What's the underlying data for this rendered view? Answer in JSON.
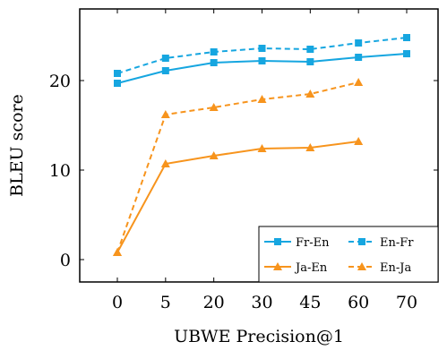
{
  "chart_data": {
    "type": "line",
    "xlabel": "UBWE Precision@1",
    "ylabel": "BLEU score",
    "categories": [
      "0",
      "5",
      "20",
      "30",
      "45",
      "60",
      "70"
    ],
    "ylim": [
      -2.5,
      28
    ],
    "yticks": [
      0,
      10,
      20
    ],
    "legend_position": "bottom-right",
    "series": [
      {
        "name": "Fr-En",
        "values": [
          19.7,
          21.1,
          22.0,
          22.2,
          22.1,
          22.6,
          23.0
        ],
        "color": "#16a6e0",
        "dashed": false,
        "marker": "square"
      },
      {
        "name": "En-Fr",
        "values": [
          20.8,
          22.5,
          23.2,
          23.6,
          23.5,
          24.2,
          24.8
        ],
        "color": "#16a6e0",
        "dashed": true,
        "marker": "square"
      },
      {
        "name": "Ja-En",
        "values": [
          0.8,
          10.7,
          11.6,
          12.4,
          12.5,
          13.2,
          null
        ],
        "color": "#f7941d",
        "dashed": false,
        "marker": "triangle"
      },
      {
        "name": "En-Ja",
        "values": [
          0.8,
          16.2,
          17.0,
          17.9,
          18.5,
          19.8,
          null
        ],
        "color": "#f7941d",
        "dashed": true,
        "marker": "triangle"
      }
    ]
  }
}
